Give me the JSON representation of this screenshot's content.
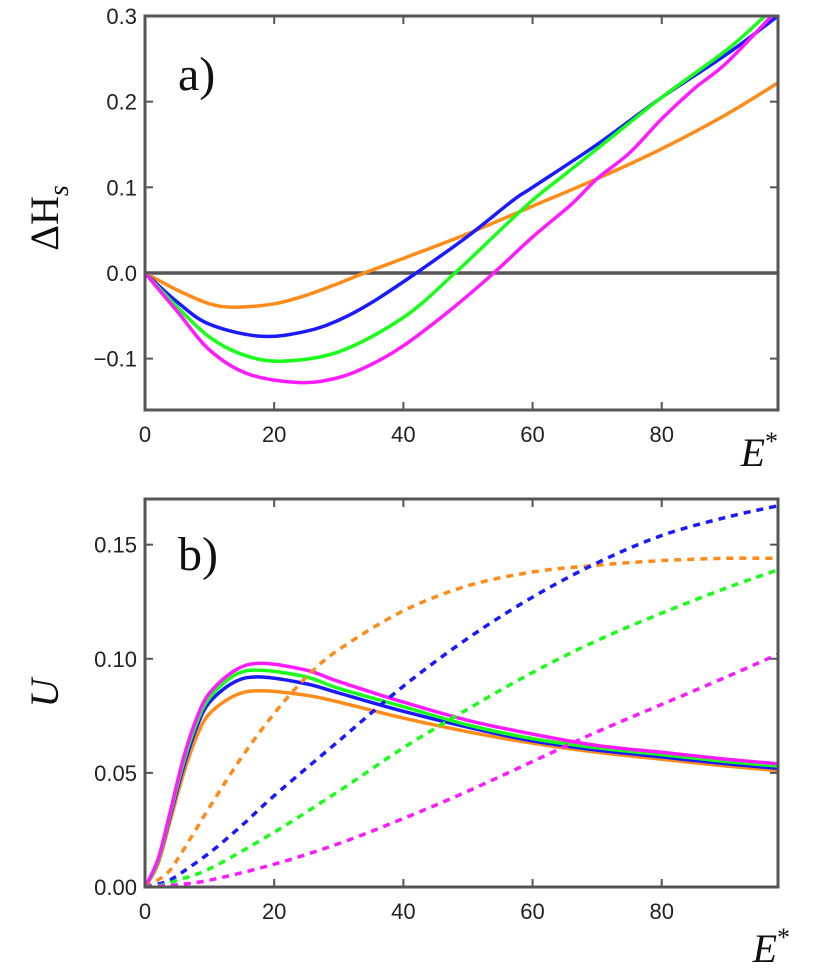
{
  "chart_data": [
    {
      "type": "line",
      "panel_label": "a)",
      "xlabel": "E*",
      "ylabel": "ΔH_s",
      "ylabel_main": "ΔH",
      "ylabel_sub": "s",
      "xlim": [
        0,
        98
      ],
      "ylim": [
        -0.16,
        0.3
      ],
      "xticks": [
        0,
        20,
        40,
        60,
        80
      ],
      "xtick_labels": [
        "0",
        "20",
        "40",
        "60",
        "80"
      ],
      "yticks": [
        -0.1,
        0.0,
        0.1,
        0.2,
        0.3
      ],
      "ytick_labels": [
        "−0.1",
        "0.0",
        "0.1",
        "0.2",
        "0.3"
      ],
      "reference_line_y": 0.0,
      "series": [
        {
          "name": "orange",
          "color": "#ff8c1a",
          "dashed": false,
          "x": [
            0,
            5,
            10,
            14,
            20,
            25,
            30,
            34,
            40,
            50,
            60,
            70,
            80,
            90,
            98
          ],
          "values": [
            0,
            -0.02,
            -0.036,
            -0.04,
            -0.036,
            -0.026,
            -0.012,
            0.0,
            0.017,
            0.046,
            0.078,
            0.11,
            0.145,
            0.185,
            0.222
          ]
        },
        {
          "name": "blue",
          "color": "#1a1aff",
          "dashed": false,
          "x": [
            0,
            5,
            10,
            18,
            25,
            30,
            35,
            42,
            50,
            57,
            60,
            70,
            80,
            90,
            98
          ],
          "values": [
            0,
            -0.034,
            -0.06,
            -0.074,
            -0.068,
            -0.055,
            -0.035,
            0.0,
            0.043,
            0.085,
            0.1,
            0.15,
            0.205,
            0.255,
            0.3
          ]
        },
        {
          "name": "green",
          "color": "#1aff1a",
          "dashed": false,
          "x": [
            0,
            5,
            10,
            15,
            21,
            30,
            40,
            48,
            55,
            60,
            65,
            70,
            80,
            90,
            96
          ],
          "values": [
            0,
            -0.04,
            -0.075,
            -0.095,
            -0.103,
            -0.092,
            -0.052,
            0.0,
            0.05,
            0.085,
            0.115,
            0.145,
            0.205,
            0.26,
            0.3
          ]
        },
        {
          "name": "magenta",
          "color": "#ff1aff",
          "dashed": false,
          "x": [
            0,
            5,
            10,
            16,
            24,
            30,
            35,
            40,
            47,
            54,
            60,
            66,
            70,
            75,
            80,
            85,
            90,
            97
          ],
          "values": [
            0,
            -0.045,
            -0.09,
            -0.118,
            -0.128,
            -0.122,
            -0.107,
            -0.085,
            -0.045,
            0.0,
            0.042,
            0.08,
            0.11,
            0.14,
            0.18,
            0.215,
            0.245,
            0.3
          ]
        }
      ]
    },
    {
      "type": "line",
      "panel_label": "b)",
      "xlabel": "E*",
      "ylabel": "U",
      "xlim": [
        0,
        98
      ],
      "ylim": [
        0,
        0.17
      ],
      "xticks": [
        0,
        20,
        40,
        60,
        80
      ],
      "xtick_labels": [
        "0",
        "20",
        "40",
        "60",
        "80"
      ],
      "yticks": [
        0.0,
        0.05,
        0.1,
        0.15
      ],
      "ytick_labels": [
        "0.00",
        "0.05",
        "0.10",
        "0.15"
      ],
      "series": [
        {
          "name": "orange",
          "color": "#ff8c1a",
          "dashed": false,
          "x": [
            0,
            2,
            4,
            6,
            8,
            10,
            14,
            18,
            25,
            30,
            40,
            50,
            60,
            70,
            80,
            90,
            98
          ],
          "values": [
            0,
            0.01,
            0.03,
            0.05,
            0.066,
            0.076,
            0.084,
            0.086,
            0.084,
            0.081,
            0.074,
            0.068,
            0.063,
            0.059,
            0.056,
            0.053,
            0.051
          ]
        },
        {
          "name": "blue",
          "color": "#1a1aff",
          "dashed": false,
          "x": [
            0,
            2,
            4,
            6,
            8,
            10,
            14,
            18,
            25,
            30,
            40,
            50,
            60,
            70,
            80,
            90,
            98
          ],
          "values": [
            0,
            0.011,
            0.032,
            0.053,
            0.07,
            0.081,
            0.09,
            0.092,
            0.089,
            0.085,
            0.077,
            0.07,
            0.064,
            0.06,
            0.057,
            0.054,
            0.052
          ]
        },
        {
          "name": "green",
          "color": "#1aff1a",
          "dashed": false,
          "x": [
            0,
            2,
            4,
            6,
            8,
            10,
            14,
            18,
            25,
            30,
            40,
            50,
            60,
            70,
            80,
            90,
            98
          ],
          "values": [
            0,
            0.011,
            0.033,
            0.055,
            0.072,
            0.083,
            0.093,
            0.095,
            0.092,
            0.087,
            0.079,
            0.071,
            0.065,
            0.061,
            0.058,
            0.055,
            0.053
          ]
        },
        {
          "name": "magenta",
          "color": "#ff1aff",
          "dashed": false,
          "x": [
            0,
            2,
            4,
            6,
            8,
            10,
            14,
            18,
            25,
            30,
            40,
            50,
            60,
            70,
            80,
            90,
            98
          ],
          "values": [
            0,
            0.012,
            0.034,
            0.057,
            0.074,
            0.085,
            0.095,
            0.098,
            0.095,
            0.09,
            0.081,
            0.073,
            0.067,
            0.062,
            0.059,
            0.056,
            0.054
          ]
        },
        {
          "name": "orange-dashed",
          "color": "#ff8c1a",
          "dashed": true,
          "x": [
            0,
            3,
            5,
            10,
            15,
            20,
            25,
            30,
            40,
            50,
            60,
            70,
            80,
            90,
            98
          ],
          "values": [
            0,
            0.005,
            0.012,
            0.035,
            0.057,
            0.076,
            0.092,
            0.104,
            0.121,
            0.132,
            0.138,
            0.141,
            0.143,
            0.144,
            0.144
          ]
        },
        {
          "name": "blue-dashed",
          "color": "#1a1aff",
          "dashed": true,
          "x": [
            0,
            3,
            5,
            10,
            15,
            20,
            30,
            40,
            50,
            60,
            70,
            80,
            90,
            98
          ],
          "values": [
            0,
            0.002,
            0.005,
            0.015,
            0.027,
            0.04,
            0.064,
            0.088,
            0.109,
            0.127,
            0.142,
            0.154,
            0.162,
            0.167
          ]
        },
        {
          "name": "green-dashed",
          "color": "#1aff1a",
          "dashed": true,
          "x": [
            0,
            3,
            5,
            10,
            20,
            30,
            40,
            50,
            60,
            70,
            80,
            90,
            98
          ],
          "values": [
            0,
            0.001,
            0.003,
            0.008,
            0.024,
            0.042,
            0.061,
            0.078,
            0.094,
            0.108,
            0.12,
            0.131,
            0.139
          ]
        },
        {
          "name": "magenta-dashed",
          "color": "#ff1aff",
          "dashed": true,
          "x": [
            0,
            3,
            5,
            10,
            20,
            30,
            40,
            50,
            60,
            70,
            80,
            90,
            98
          ],
          "values": [
            0,
            0.0005,
            0.001,
            0.003,
            0.01,
            0.019,
            0.03,
            0.042,
            0.055,
            0.068,
            0.08,
            0.092,
            0.102
          ]
        }
      ]
    }
  ]
}
